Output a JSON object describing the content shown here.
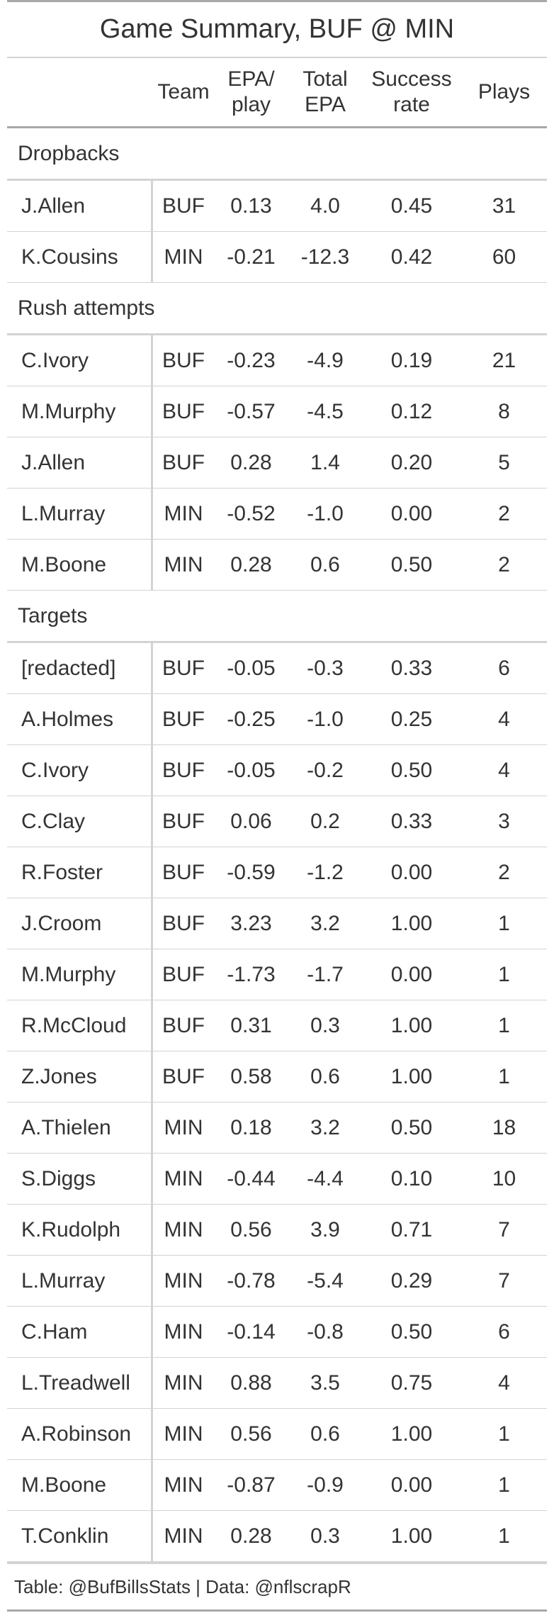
{
  "chart_data": {
    "type": "table",
    "title": "Game Summary, BUF @ MIN",
    "columns": [
      "",
      "Team",
      "EPA/\nplay",
      "Total\nEPA",
      "Success\nrate",
      "Plays"
    ],
    "groups": [
      {
        "label": "Dropbacks",
        "rows": [
          [
            "J.Allen",
            "BUF",
            "0.13",
            "4.0",
            "0.45",
            "31"
          ],
          [
            "K.Cousins",
            "MIN",
            "-0.21",
            "-12.3",
            "0.42",
            "60"
          ]
        ]
      },
      {
        "label": "Rush attempts",
        "rows": [
          [
            "C.Ivory",
            "BUF",
            "-0.23",
            "-4.9",
            "0.19",
            "21"
          ],
          [
            "M.Murphy",
            "BUF",
            "-0.57",
            "-4.5",
            "0.12",
            "8"
          ],
          [
            "J.Allen",
            "BUF",
            "0.28",
            "1.4",
            "0.20",
            "5"
          ],
          [
            "L.Murray",
            "MIN",
            "-0.52",
            "-1.0",
            "0.00",
            "2"
          ],
          [
            "M.Boone",
            "MIN",
            "0.28",
            "0.6",
            "0.50",
            "2"
          ]
        ]
      },
      {
        "label": "Targets",
        "rows": [
          [
            "[redacted]",
            "BUF",
            "-0.05",
            "-0.3",
            "0.33",
            "6"
          ],
          [
            "A.Holmes",
            "BUF",
            "-0.25",
            "-1.0",
            "0.25",
            "4"
          ],
          [
            "C.Ivory",
            "BUF",
            "-0.05",
            "-0.2",
            "0.50",
            "4"
          ],
          [
            "C.Clay",
            "BUF",
            "0.06",
            "0.2",
            "0.33",
            "3"
          ],
          [
            "R.Foster",
            "BUF",
            "-0.59",
            "-1.2",
            "0.00",
            "2"
          ],
          [
            "J.Croom",
            "BUF",
            "3.23",
            "3.2",
            "1.00",
            "1"
          ],
          [
            "M.Murphy",
            "BUF",
            "-1.73",
            "-1.7",
            "0.00",
            "1"
          ],
          [
            "R.McCloud",
            "BUF",
            "0.31",
            "0.3",
            "1.00",
            "1"
          ],
          [
            "Z.Jones",
            "BUF",
            "0.58",
            "0.6",
            "1.00",
            "1"
          ],
          [
            "A.Thielen",
            "MIN",
            "0.18",
            "3.2",
            "0.50",
            "18"
          ],
          [
            "S.Diggs",
            "MIN",
            "-0.44",
            "-4.4",
            "0.10",
            "10"
          ],
          [
            "K.Rudolph",
            "MIN",
            "0.56",
            "3.9",
            "0.71",
            "7"
          ],
          [
            "L.Murray",
            "MIN",
            "-0.78",
            "-5.4",
            "0.29",
            "7"
          ],
          [
            "C.Ham",
            "MIN",
            "-0.14",
            "-0.8",
            "0.50",
            "6"
          ],
          [
            "L.Treadwell",
            "MIN",
            "0.88",
            "3.5",
            "0.75",
            "4"
          ],
          [
            "A.Robinson",
            "MIN",
            "0.56",
            "0.6",
            "1.00",
            "1"
          ],
          [
            "M.Boone",
            "MIN",
            "-0.87",
            "-0.9",
            "0.00",
            "1"
          ],
          [
            "T.Conklin",
            "MIN",
            "0.28",
            "0.3",
            "1.00",
            "1"
          ]
        ]
      }
    ],
    "source_note": "Table: @BufBillsStats | Data: @nflscrapR"
  }
}
